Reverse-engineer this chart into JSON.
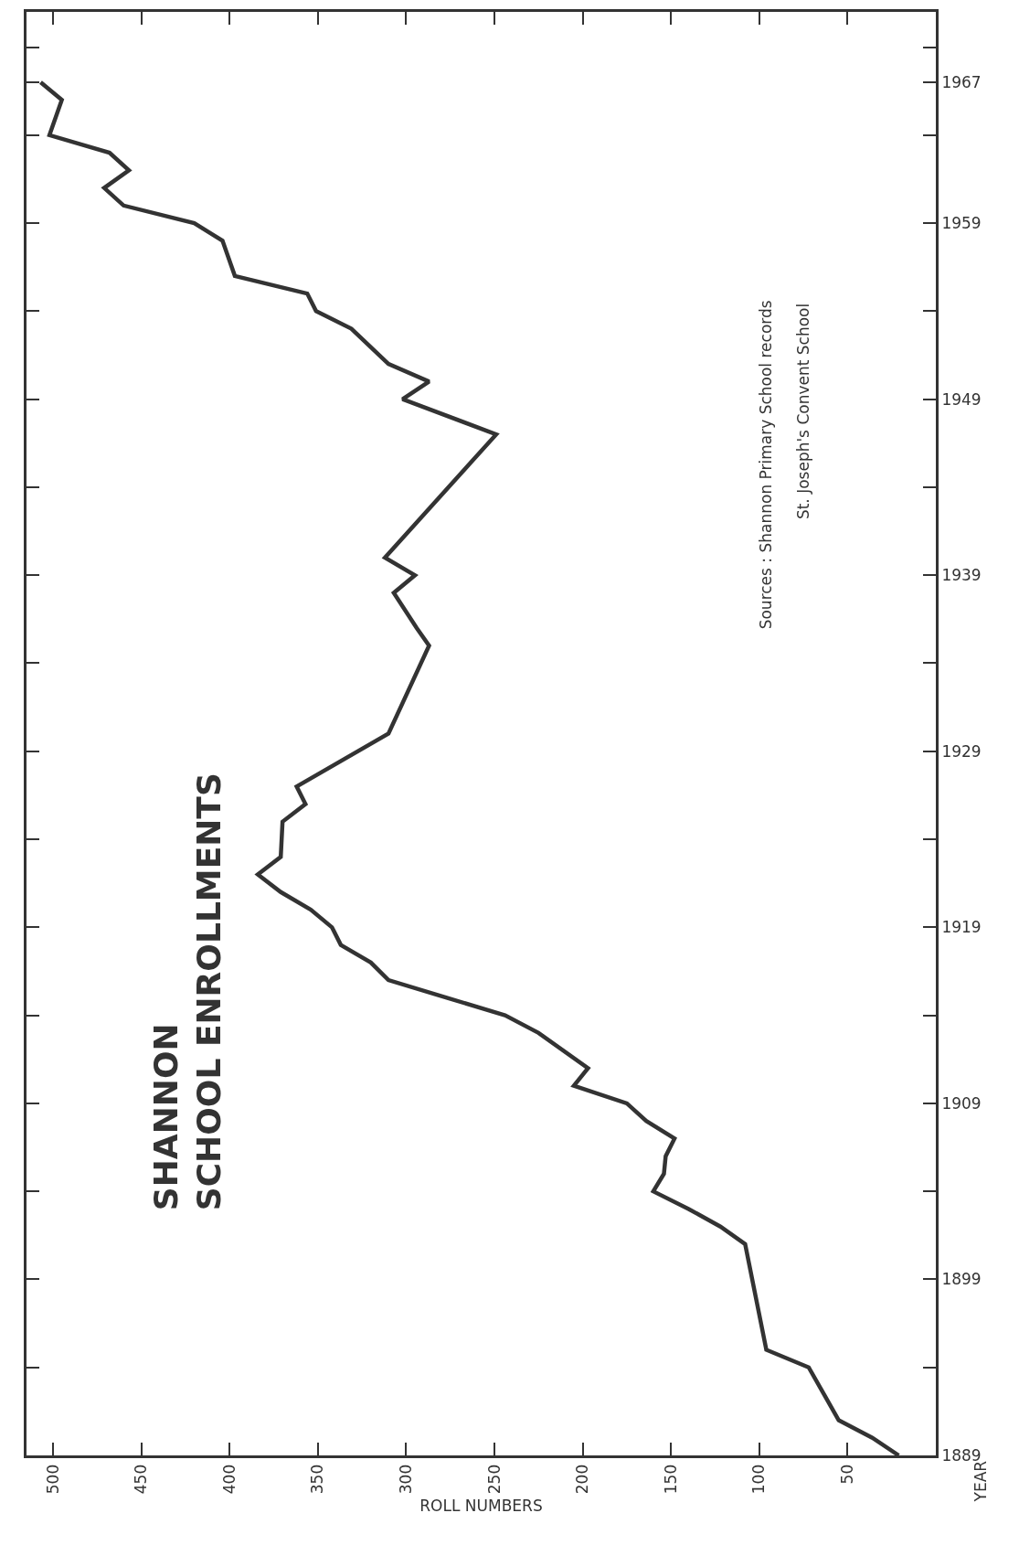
{
  "chart_data": {
    "type": "line",
    "title": "SHANNON\nSCHOOL ENROLLMENTS",
    "xlabel": "ROLL NUMBERS",
    "ylabel": "YEAR",
    "annotations": [
      "Sources : Shannon Primary School records",
      "St. Joseph's Convent School"
    ],
    "x": [
      21,
      36,
      55,
      72,
      96,
      108,
      122,
      140,
      160,
      154,
      153,
      148,
      164,
      175,
      205,
      197,
      225,
      244,
      277,
      310,
      320,
      337,
      342,
      354,
      371,
      384,
      371,
      370,
      357,
      362,
      310,
      287,
      294,
      307,
      295,
      312,
      249,
      302,
      287,
      310,
      331,
      351,
      356,
      397,
      404,
      420,
      460,
      471,
      457,
      468,
      502,
      495,
      507
    ],
    "values": [
      1889,
      1890,
      1891,
      1894,
      1895,
      1901,
      1902,
      1903,
      1904,
      1905,
      1906,
      1907,
      1908,
      1909,
      1910,
      1911,
      1913,
      1914,
      1915,
      1916,
      1917,
      1918,
      1919,
      1920,
      1921,
      1922,
      1923,
      1925,
      1926,
      1927,
      1930,
      1935,
      1936,
      1938,
      1939,
      1940,
      1947,
      1949,
      1950,
      1951,
      1953,
      1954,
      1955,
      1956,
      1958,
      1959,
      1960,
      1961,
      1962,
      1963,
      1964,
      1966,
      1967
    ],
    "color": "#333333",
    "xlim": [
      515,
      0
    ],
    "ylim": [
      1889,
      1971
    ],
    "xticks": [
      50,
      100,
      150,
      200,
      250,
      300,
      350,
      400,
      450,
      500
    ],
    "yticks": [
      1889,
      {
        "value": 1894,
        "label": null
      },
      1899,
      {
        "value": 1904,
        "label": null
      },
      1909,
      {
        "value": 1914,
        "label": null
      },
      1919,
      {
        "value": 1924,
        "label": null
      },
      1929,
      {
        "value": 1934,
        "label": null
      },
      1939,
      {
        "value": 1944,
        "label": null
      },
      1949,
      {
        "value": 1954,
        "label": null
      },
      1959,
      {
        "value": 1964,
        "label": null
      },
      1967,
      {
        "value": 1969,
        "label": null
      }
    ]
  }
}
